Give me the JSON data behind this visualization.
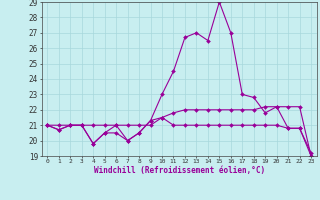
{
  "xlabel": "Windchill (Refroidissement éolien,°C)",
  "ylabel": "",
  "background_color": "#c8eef0",
  "line_color": "#990099",
  "grid_color": "#a8d8dc",
  "xlim": [
    -0.5,
    23.5
  ],
  "ylim": [
    19,
    29
  ],
  "yticks": [
    19,
    20,
    21,
    22,
    23,
    24,
    25,
    26,
    27,
    28,
    29
  ],
  "xticks": [
    0,
    1,
    2,
    3,
    4,
    5,
    6,
    7,
    8,
    9,
    10,
    11,
    12,
    13,
    14,
    15,
    16,
    17,
    18,
    19,
    20,
    21,
    22,
    23
  ],
  "series": [
    [
      21.0,
      20.7,
      21.0,
      21.0,
      19.8,
      20.5,
      20.5,
      20.0,
      20.5,
      21.3,
      21.5,
      21.0,
      21.0,
      21.0,
      21.0,
      21.0,
      21.0,
      21.0,
      21.0,
      21.0,
      21.0,
      20.8,
      20.8,
      19.0
    ],
    [
      21.0,
      21.0,
      21.0,
      21.0,
      21.0,
      21.0,
      21.0,
      21.0,
      21.0,
      21.0,
      21.5,
      21.8,
      22.0,
      22.0,
      22.0,
      22.0,
      22.0,
      22.0,
      22.0,
      22.2,
      22.2,
      22.2,
      22.2,
      19.0
    ],
    [
      21.0,
      20.7,
      21.0,
      21.0,
      19.8,
      20.5,
      21.0,
      20.0,
      20.5,
      21.3,
      23.0,
      24.5,
      26.7,
      27.0,
      26.5,
      29.0,
      27.0,
      23.0,
      22.8,
      21.8,
      22.2,
      20.8,
      20.8,
      19.2
    ]
  ]
}
